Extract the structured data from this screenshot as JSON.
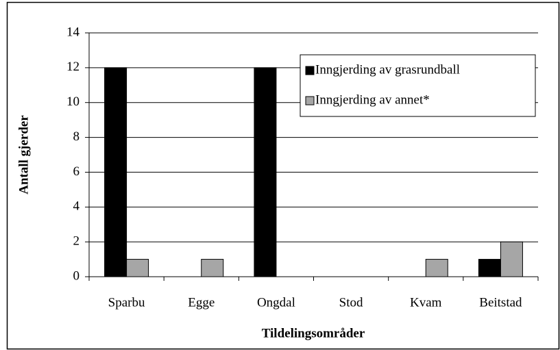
{
  "chart_data": {
    "type": "bar",
    "categories": [
      "Sparbu",
      "Egge",
      "Ongdal",
      "Stod",
      "Kvam",
      "Beitstad"
    ],
    "series": [
      {
        "name": "Inngjerding av grasrundball",
        "color": "#000000",
        "values": [
          12,
          0,
          12,
          0,
          0,
          1
        ]
      },
      {
        "name": "Inngjerding av annet*",
        "color": "#a6a6a6",
        "values": [
          1,
          1,
          0,
          0,
          1,
          2
        ]
      }
    ],
    "ylabel": "Antall gjerder",
    "xlabel": "Tildelingsområder",
    "ylim": [
      0,
      14
    ],
    "yticks": [
      0,
      2,
      4,
      6,
      8,
      10,
      12,
      14
    ],
    "grid": true,
    "legend": "upper right"
  }
}
